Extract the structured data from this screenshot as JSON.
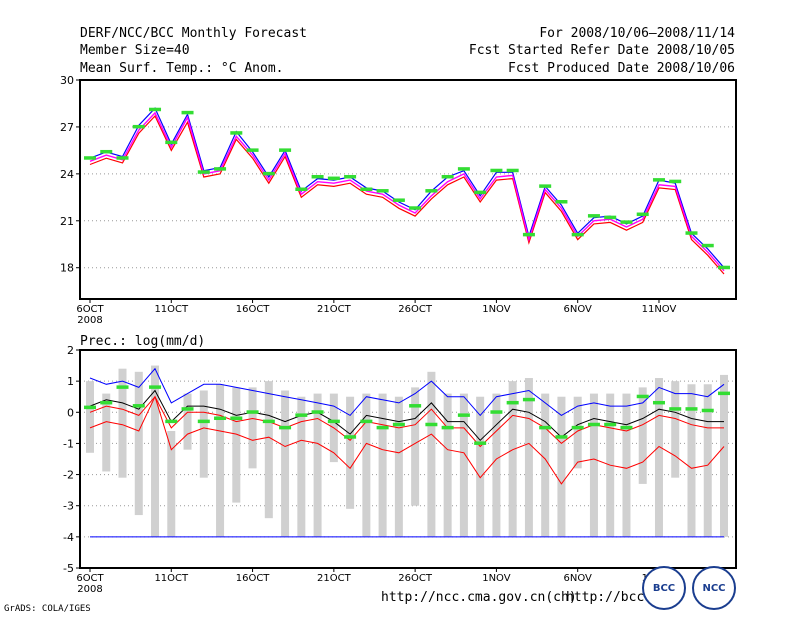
{
  "header": {
    "title": "DERF/NCC/BCC Monthly Forecast",
    "member_size": "Member Size=40",
    "variable": "Mean Surf. Temp.: °C Anom.",
    "period": "For 2008/10/06—2008/11/14",
    "started": "Fcst Started Refer Date 2008/10/05",
    "produced": "Fcst Produced Date 2008/10/06"
  },
  "footer": {
    "grads": "GrADS: COLA/IGES",
    "url1": "http://ncc.cma.gov.cn(ch)",
    "url2": "http://bcc.",
    "logo_left": "BCC",
    "logo_right": "NCC"
  },
  "colors": {
    "mean": "#000000",
    "upper": "#0000ff",
    "lower": "#ff0000",
    "obs": "#33dd33",
    "spread": "#d0d0d0",
    "mid": "#ff00ff"
  },
  "chart_data": [
    {
      "type": "line",
      "title": "Mean Surf. Temp.: °C Anom.",
      "x_tick_labels": [
        "6OCT",
        "11OCT",
        "16OCT",
        "21OCT",
        "26OCT",
        "1NOV",
        "6NOV",
        "11NOV"
      ],
      "x_tick_sub": "2008",
      "y_ticks": [
        18,
        21,
        24,
        27,
        30
      ],
      "ylim": [
        16,
        30
      ],
      "days": 40,
      "series": [
        {
          "name": "mean",
          "values": [
            24.8,
            25.2,
            24.9,
            26.8,
            27.9,
            25.7,
            27.6,
            24.0,
            24.2,
            26.4,
            25.2,
            23.6,
            25.3,
            22.7,
            23.5,
            23.4,
            23.6,
            22.9,
            22.7,
            22.0,
            21.5,
            22.6,
            23.5,
            24.0,
            22.4,
            23.8,
            23.9,
            19.8,
            23.0,
            21.8,
            20.0,
            21.0,
            21.1,
            20.6,
            21.1,
            23.3,
            23.2,
            20.0,
            19.0,
            17.8
          ]
        },
        {
          "name": "upper",
          "values": [
            25.0,
            25.4,
            25.1,
            27.1,
            28.2,
            25.9,
            27.8,
            24.2,
            24.4,
            26.7,
            25.4,
            23.8,
            25.5,
            22.9,
            23.7,
            23.6,
            23.8,
            23.1,
            22.9,
            22.2,
            21.7,
            22.9,
            23.8,
            24.2,
            22.6,
            24.1,
            24.1,
            20.0,
            23.2,
            22.0,
            20.2,
            21.2,
            21.3,
            20.8,
            21.3,
            23.6,
            23.4,
            20.2,
            19.2,
            18.0
          ]
        },
        {
          "name": "lower",
          "values": [
            24.6,
            25.0,
            24.7,
            26.6,
            27.7,
            25.5,
            27.3,
            23.8,
            24.0,
            26.2,
            25.0,
            23.4,
            25.1,
            22.5,
            23.3,
            23.2,
            23.4,
            22.7,
            22.5,
            21.8,
            21.3,
            22.4,
            23.3,
            23.8,
            22.2,
            23.6,
            23.7,
            19.6,
            22.8,
            21.6,
            19.8,
            20.8,
            20.9,
            20.4,
            20.9,
            23.1,
            23.0,
            19.8,
            18.8,
            17.6
          ]
        },
        {
          "name": "obs",
          "values": [
            25.0,
            25.4,
            25.0,
            27.0,
            28.1,
            26.0,
            27.9,
            24.1,
            24.3,
            26.6,
            25.5,
            24.0,
            25.5,
            23.0,
            23.8,
            23.7,
            23.8,
            23.0,
            22.9,
            22.3,
            21.8,
            22.9,
            23.8,
            24.3,
            22.8,
            24.2,
            24.2,
            20.1,
            23.2,
            22.2,
            20.1,
            21.3,
            21.2,
            20.9,
            21.4,
            23.6,
            23.5,
            20.2,
            19.4,
            18.0
          ]
        }
      ]
    },
    {
      "type": "line",
      "title": "Prec.: log(mm/d)",
      "x_tick_labels": [
        "6OCT",
        "11OCT",
        "16OCT",
        "21OCT",
        "26OCT",
        "1NOV",
        "6NOV",
        "11NOV"
      ],
      "x_tick_sub": "2008",
      "y_ticks": [
        -5,
        -4,
        -3,
        -2,
        -1,
        0,
        1,
        2
      ],
      "ylim": [
        -5,
        2
      ],
      "days": 40,
      "baseline": -4,
      "series": [
        {
          "name": "upper",
          "values": [
            1.1,
            0.9,
            1.0,
            0.8,
            1.4,
            0.3,
            0.6,
            0.9,
            0.9,
            0.8,
            0.7,
            0.6,
            0.5,
            0.4,
            0.3,
            0.2,
            -0.1,
            0.5,
            0.4,
            0.3,
            0.6,
            1.0,
            0.5,
            0.5,
            -0.1,
            0.5,
            0.6,
            0.7,
            0.3,
            -0.1,
            0.2,
            0.3,
            0.2,
            0.2,
            0.3,
            0.8,
            0.6,
            0.6,
            0.5,
            0.9
          ]
        },
        {
          "name": "mean",
          "values": [
            0.2,
            0.4,
            0.3,
            0.1,
            0.7,
            -0.3,
            0.2,
            0.2,
            0.1,
            -0.1,
            0.0,
            -0.1,
            -0.3,
            -0.1,
            0.0,
            -0.3,
            -0.7,
            -0.1,
            -0.2,
            -0.3,
            -0.2,
            0.3,
            -0.3,
            -0.3,
            -0.9,
            -0.4,
            0.1,
            0.0,
            -0.3,
            -0.8,
            -0.4,
            -0.2,
            -0.3,
            -0.4,
            -0.2,
            0.1,
            0.0,
            -0.2,
            -0.3,
            -0.3
          ]
        },
        {
          "name": "mid",
          "values": [
            0.0,
            0.2,
            0.1,
            -0.1,
            0.5,
            -0.5,
            0.0,
            0.0,
            -0.1,
            -0.3,
            -0.2,
            -0.3,
            -0.5,
            -0.3,
            -0.2,
            -0.5,
            -0.9,
            -0.3,
            -0.4,
            -0.5,
            -0.4,
            0.1,
            -0.5,
            -0.5,
            -1.1,
            -0.6,
            -0.1,
            -0.2,
            -0.5,
            -1.0,
            -0.6,
            -0.4,
            -0.5,
            -0.6,
            -0.4,
            -0.1,
            -0.2,
            -0.4,
            -0.5,
            -0.5
          ]
        },
        {
          "name": "lower",
          "values": [
            -0.5,
            -0.3,
            -0.4,
            -0.6,
            0.5,
            -1.2,
            -0.7,
            -0.5,
            -0.6,
            -0.7,
            -0.9,
            -0.8,
            -1.1,
            -0.9,
            -1.0,
            -1.3,
            -1.8,
            -1.0,
            -1.2,
            -1.3,
            -1.0,
            -0.7,
            -1.2,
            -1.3,
            -2.1,
            -1.5,
            -1.2,
            -1.0,
            -1.5,
            -2.3,
            -1.6,
            -1.5,
            -1.7,
            -1.8,
            -1.6,
            -1.1,
            -1.4,
            -1.8,
            -1.7,
            -1.1
          ]
        },
        {
          "name": "obs",
          "values": [
            0.15,
            0.3,
            0.8,
            0.2,
            0.8,
            -0.3,
            0.1,
            -0.3,
            -0.2,
            -0.2,
            0.0,
            -0.3,
            -0.5,
            -0.1,
            0.0,
            -0.3,
            -0.8,
            -0.3,
            -0.5,
            -0.4,
            0.2,
            -0.4,
            -0.5,
            -0.1,
            -1.0,
            0.0,
            0.3,
            0.4,
            -0.5,
            -0.8,
            -0.5,
            -0.4,
            -0.4,
            -0.5,
            0.5,
            0.3,
            0.1,
            0.1,
            0.05,
            0.6
          ]
        },
        {
          "name": "spread_high",
          "values": [
            1.0,
            0.6,
            1.4,
            1.3,
            1.5,
            -0.6,
            0.6,
            0.7,
            0.9,
            0.8,
            0.8,
            1.0,
            0.7,
            0.5,
            0.6,
            0.6,
            0.5,
            0.6,
            0.6,
            0.5,
            0.8,
            1.3,
            0.6,
            0.6,
            0.5,
            0.6,
            1.0,
            1.1,
            0.6,
            0.5,
            0.5,
            0.6,
            0.6,
            0.6,
            0.8,
            1.1,
            1.0,
            0.9,
            0.9,
            1.2
          ]
        },
        {
          "name": "spread_low",
          "values": [
            -1.3,
            -1.9,
            -2.1,
            -3.3,
            -4.0,
            -4.0,
            -1.2,
            -2.1,
            -4.0,
            -2.9,
            -1.8,
            -3.4,
            -4.0,
            -4.0,
            -4.0,
            -1.6,
            -3.1,
            -4.0,
            -4.0,
            -4.0,
            -3.0,
            -4.0,
            -4.0,
            -4.0,
            -4.0,
            -4.0,
            -4.0,
            -4.0,
            -4.0,
            -4.0,
            -1.8,
            -4.0,
            -4.0,
            -4.0,
            -2.3,
            -4.0,
            -2.1,
            -4.0,
            -4.0,
            -4.0
          ]
        }
      ]
    }
  ]
}
